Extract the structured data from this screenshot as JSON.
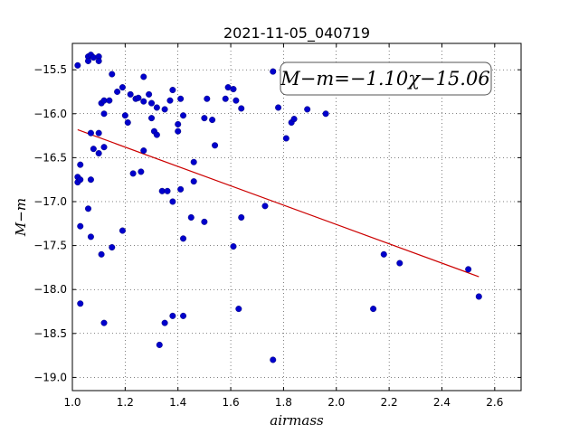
{
  "chart_data": {
    "type": "scatter",
    "title": "2021-11-05_040719",
    "xlabel": "airmass",
    "ylabel": "M−m",
    "annotation": "M−m=−1.10χ−15.06",
    "xlim": [
      1.0,
      2.7
    ],
    "ylim": [
      -19.15,
      -15.2
    ],
    "y_inverted": true,
    "xticks": [
      "1.0",
      "1.2",
      "1.4",
      "1.6",
      "1.8",
      "2.0",
      "2.2",
      "2.4",
      "2.6"
    ],
    "xtick_values": [
      1.0,
      1.2,
      1.4,
      1.6,
      1.8,
      2.0,
      2.2,
      2.4,
      2.6
    ],
    "yticks": [
      "−15.5",
      "−16.0",
      "−16.5",
      "−17.0",
      "−17.5",
      "−18.0",
      "−18.5",
      "−19.0"
    ],
    "ytick_values": [
      -15.5,
      -16.0,
      -16.5,
      -17.0,
      -17.5,
      -18.0,
      -18.5,
      -19.0
    ],
    "grid": true,
    "point_color": "#0000cc",
    "fit_color": "#cc0000",
    "fit": {
      "slope": -1.1,
      "intercept": -15.06,
      "x_range": [
        1.02,
        2.54
      ]
    },
    "points": [
      [
        1.02,
        -15.45
      ],
      [
        1.06,
        -15.35
      ],
      [
        1.06,
        -15.4
      ],
      [
        1.07,
        -15.33
      ],
      [
        1.08,
        -15.36
      ],
      [
        1.1,
        -15.35
      ],
      [
        1.1,
        -15.4
      ],
      [
        1.15,
        -15.55
      ],
      [
        1.07,
        -16.22
      ],
      [
        1.1,
        -16.22
      ],
      [
        1.11,
        -15.88
      ],
      [
        1.12,
        -15.85
      ],
      [
        1.12,
        -16.0
      ],
      [
        1.14,
        -15.85
      ],
      [
        1.17,
        -15.75
      ],
      [
        1.19,
        -15.7
      ],
      [
        1.2,
        -16.02
      ],
      [
        1.21,
        -16.1
      ],
      [
        1.22,
        -15.78
      ],
      [
        1.24,
        -15.83
      ],
      [
        1.25,
        -15.82
      ],
      [
        1.27,
        -15.58
      ],
      [
        1.27,
        -15.86
      ],
      [
        1.29,
        -15.78
      ],
      [
        1.3,
        -15.88
      ],
      [
        1.3,
        -16.05
      ],
      [
        1.32,
        -15.93
      ],
      [
        1.31,
        -16.2
      ],
      [
        1.32,
        -16.24
      ],
      [
        1.35,
        -15.95
      ],
      [
        1.37,
        -15.85
      ],
      [
        1.38,
        -15.73
      ],
      [
        1.41,
        -15.83
      ],
      [
        1.42,
        -16.02
      ],
      [
        1.4,
        -16.12
      ],
      [
        1.4,
        -16.2
      ],
      [
        1.5,
        -16.05
      ],
      [
        1.51,
        -15.83
      ],
      [
        1.53,
        -16.07
      ],
      [
        1.54,
        -16.36
      ],
      [
        1.58,
        -15.83
      ],
      [
        1.59,
        -15.7
      ],
      [
        1.61,
        -15.72
      ],
      [
        1.62,
        -15.85
      ],
      [
        1.64,
        -15.94
      ],
      [
        1.76,
        -15.52
      ],
      [
        1.78,
        -15.93
      ],
      [
        1.81,
        -16.28
      ],
      [
        1.83,
        -16.1
      ],
      [
        1.84,
        -16.06
      ],
      [
        1.89,
        -15.95
      ],
      [
        1.96,
        -16.0
      ],
      [
        1.08,
        -16.4
      ],
      [
        1.1,
        -16.45
      ],
      [
        1.12,
        -16.38
      ],
      [
        1.03,
        -16.58
      ],
      [
        1.02,
        -16.72
      ],
      [
        1.02,
        -16.78
      ],
      [
        1.03,
        -16.75
      ],
      [
        1.07,
        -16.75
      ],
      [
        1.23,
        -16.68
      ],
      [
        1.26,
        -16.66
      ],
      [
        1.27,
        -16.42
      ],
      [
        1.34,
        -16.88
      ],
      [
        1.36,
        -16.88
      ],
      [
        1.41,
        -16.86
      ],
      [
        1.38,
        -17.0
      ],
      [
        1.46,
        -16.55
      ],
      [
        1.46,
        -16.77
      ],
      [
        1.06,
        -17.08
      ],
      [
        1.03,
        -17.28
      ],
      [
        1.07,
        -17.4
      ],
      [
        1.15,
        -17.52
      ],
      [
        1.19,
        -17.33
      ],
      [
        1.11,
        -17.6
      ],
      [
        1.42,
        -17.42
      ],
      [
        1.45,
        -17.18
      ],
      [
        1.5,
        -17.23
      ],
      [
        1.61,
        -17.51
      ],
      [
        1.64,
        -17.18
      ],
      [
        1.73,
        -17.05
      ],
      [
        1.03,
        -18.16
      ],
      [
        1.12,
        -18.38
      ],
      [
        1.33,
        -18.63
      ],
      [
        1.35,
        -18.38
      ],
      [
        1.38,
        -18.3
      ],
      [
        1.42,
        -18.3
      ],
      [
        1.63,
        -18.22
      ],
      [
        1.76,
        -18.8
      ],
      [
        2.14,
        -18.22
      ],
      [
        2.18,
        -17.6
      ],
      [
        2.24,
        -17.7
      ],
      [
        2.5,
        -17.77
      ],
      [
        2.54,
        -18.08
      ]
    ]
  }
}
